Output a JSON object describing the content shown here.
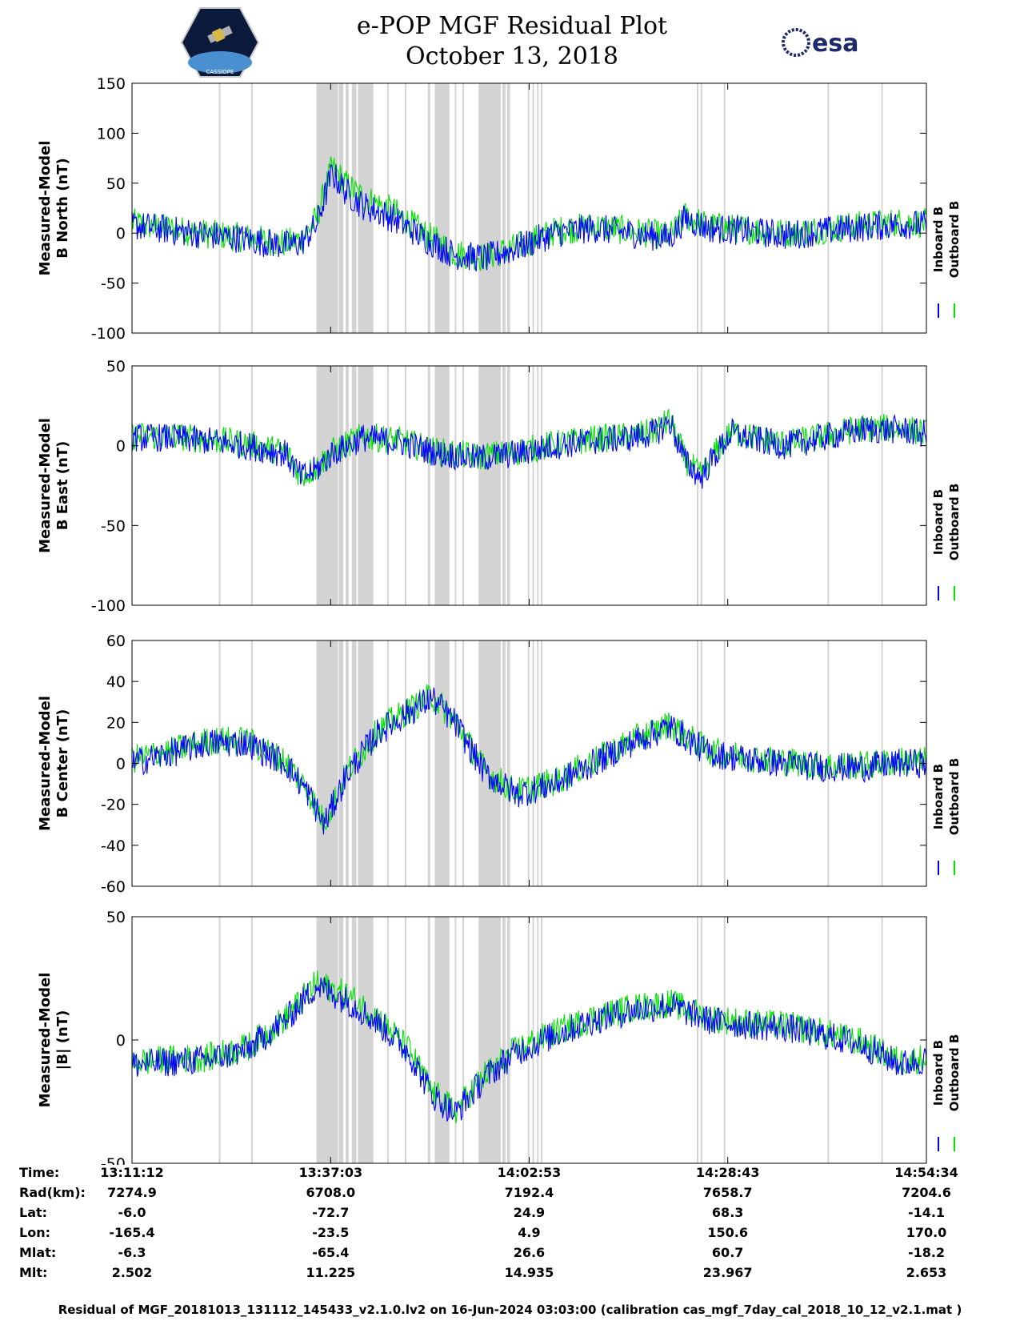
{
  "header": {
    "title_line1": "e-POP MGF Residual Plot",
    "title_line2": "October 13, 2018",
    "logo_left_text": "CASSIOPE",
    "logo_right_text": "esa"
  },
  "colors": {
    "inboard": "#0000ff",
    "outboard": "#00e000",
    "gap": "#d3d3d3"
  },
  "legend": {
    "inboard": "Inboard B",
    "outboard": "Outboard B"
  },
  "chart_data": [
    {
      "type": "line",
      "ylabel_line1": "Measured-Model",
      "ylabel_line2": "B North (nT)",
      "ylim": [
        -100,
        150
      ],
      "yticks": [
        150,
        100,
        50,
        0,
        -50,
        -100
      ],
      "x_minutes": [
        0,
        5,
        10,
        14,
        18,
        20,
        22,
        24,
        26,
        28,
        30,
        34,
        38,
        42,
        46,
        50,
        55,
        60,
        65,
        70,
        72,
        75,
        80,
        85,
        90,
        95,
        100,
        103.4
      ],
      "series": [
        {
          "name": "Inboard B",
          "values": [
            8,
            3,
            -2,
            -5,
            -10,
            -12,
            -10,
            8,
            60,
            40,
            28,
            15,
            -5,
            -22,
            -25,
            -15,
            0,
            5,
            0,
            -5,
            15,
            5,
            2,
            -2,
            2,
            6,
            9,
            8
          ]
        },
        {
          "name": "Outboard B",
          "values": [
            10,
            4,
            -1,
            -4,
            -8,
            -10,
            -6,
            14,
            66,
            48,
            36,
            22,
            0,
            -20,
            -24,
            -14,
            2,
            7,
            2,
            -3,
            17,
            7,
            4,
            0,
            4,
            8,
            11,
            10
          ]
        }
      ]
    },
    {
      "type": "line",
      "ylabel_line1": "Measured-Model",
      "ylabel_line2": "B East (nT)",
      "ylim": [
        -100,
        50
      ],
      "yticks": [
        50,
        0,
        -50,
        -100
      ],
      "x_minutes": [
        0,
        5,
        10,
        15,
        20,
        22,
        24,
        26,
        30,
        35,
        40,
        45,
        50,
        55,
        60,
        65,
        68,
        70,
        72,
        74,
        76,
        78,
        80,
        85,
        90,
        95,
        100,
        103.4
      ],
      "series": [
        {
          "name": "Inboard B",
          "values": [
            5,
            5,
            3,
            0,
            -5,
            -20,
            -15,
            -5,
            5,
            2,
            -5,
            -8,
            -5,
            0,
            3,
            5,
            8,
            15,
            -10,
            -20,
            -5,
            8,
            5,
            0,
            5,
            10,
            10,
            7
          ]
        },
        {
          "name": "Outboard B",
          "values": [
            6,
            6,
            4,
            1,
            -4,
            -19,
            -14,
            -4,
            6,
            3,
            -4,
            -7,
            -4,
            1,
            4,
            6,
            9,
            16,
            -9,
            -19,
            -4,
            9,
            6,
            1,
            6,
            11,
            11,
            8
          ]
        }
      ]
    },
    {
      "type": "line",
      "ylabel_line1": "Measured-Model",
      "ylabel_line2": "B Center (nT)",
      "ylim": [
        -60,
        60
      ],
      "yticks": [
        60,
        40,
        20,
        0,
        -20,
        -40,
        -60
      ],
      "x_minutes": [
        0,
        5,
        10,
        15,
        20,
        23,
        25,
        28,
        32,
        36,
        39,
        42,
        46,
        50,
        55,
        60,
        65,
        70,
        75,
        80,
        85,
        90,
        95,
        100,
        103.4
      ],
      "series": [
        {
          "name": "Inboard B",
          "values": [
            0,
            5,
            10,
            10,
            0,
            -15,
            -30,
            -5,
            15,
            25,
            32,
            20,
            -5,
            -15,
            -10,
            0,
            10,
            18,
            5,
            2,
            0,
            -2,
            -2,
            0,
            0
          ]
        },
        {
          "name": "Outboard B",
          "values": [
            2,
            6,
            11,
            11,
            1,
            -14,
            -29,
            -4,
            16,
            26,
            33,
            21,
            -4,
            -14,
            -9,
            1,
            11,
            19,
            6,
            3,
            1,
            -1,
            -1,
            1,
            1
          ]
        }
      ]
    },
    {
      "type": "line",
      "ylabel_line1": "Measured-Model",
      "ylabel_line2": "|B| (nT)",
      "ylim": [
        -50,
        50
      ],
      "yticks": [
        50,
        0,
        -50
      ],
      "x_minutes": [
        0,
        5,
        10,
        15,
        20,
        24,
        28,
        32,
        36,
        39,
        42,
        46,
        50,
        55,
        60,
        65,
        70,
        75,
        80,
        85,
        90,
        95,
        100,
        103.4
      ],
      "series": [
        {
          "name": "Inboard B",
          "values": [
            -10,
            -9,
            -8,
            -4,
            8,
            22,
            16,
            7,
            -5,
            -22,
            -30,
            -15,
            -5,
            2,
            8,
            12,
            14,
            8,
            6,
            5,
            2,
            -2,
            -10,
            -8
          ]
        },
        {
          "name": "Outboard B",
          "values": [
            -9,
            -8,
            -7,
            -3,
            9,
            23,
            18,
            9,
            -4,
            -21,
            -29,
            -14,
            -4,
            3,
            9,
            13,
            15,
            9,
            7,
            6,
            3,
            -1,
            -9,
            -7
          ]
        }
      ]
    }
  ],
  "gap_minutes": [
    [
      11.3,
      11.5
    ],
    [
      15.5,
      15.7
    ],
    [
      24,
      26.8
    ],
    [
      26.9,
      27.5
    ],
    [
      27.8,
      28.2
    ],
    [
      28.6,
      29.2
    ],
    [
      29.4,
      31.4
    ],
    [
      33.2,
      33.4
    ],
    [
      35.5,
      35.7
    ],
    [
      38.5,
      38.8
    ],
    [
      39.4,
      41.3
    ],
    [
      42,
      42.2
    ],
    [
      43,
      43.2
    ],
    [
      45.1,
      48
    ],
    [
      48.2,
      48.6
    ],
    [
      48.8,
      49.2
    ],
    [
      51.5,
      51.7
    ],
    [
      52.1,
      52.3
    ],
    [
      52.7,
      52.9
    ],
    [
      53.2,
      53.4
    ],
    [
      73.5,
      73.7
    ],
    [
      74,
      74.2
    ],
    [
      77,
      77.2
    ],
    [
      90.5,
      90.7
    ],
    [
      97.5,
      97.7
    ]
  ],
  "time_axis": {
    "tick_minutes": [
      0,
      25.85,
      51.68,
      77.52,
      103.37
    ],
    "rows": [
      {
        "label": "Time:",
        "values": [
          "13:11:12",
          "13:37:03",
          "14:02:53",
          "14:28:43",
          "14:54:34"
        ]
      },
      {
        "label": "Rad(km):",
        "values": [
          "7274.9",
          "6708.0",
          "7192.4",
          "7658.7",
          "7204.6"
        ]
      },
      {
        "label": "Lat:",
        "values": [
          "-6.0",
          "-72.7",
          "24.9",
          "68.3",
          "-14.1"
        ]
      },
      {
        "label": "Lon:",
        "values": [
          "-165.4",
          "-23.5",
          "4.9",
          "150.6",
          "170.0"
        ]
      },
      {
        "label": "Mlat:",
        "values": [
          "-6.3",
          "-65.4",
          "26.6",
          "60.7",
          "-18.2"
        ]
      },
      {
        "label": "Mlt:",
        "values": [
          "2.502",
          "11.225",
          "14.935",
          "23.967",
          "2.653"
        ]
      }
    ]
  },
  "footer": "Residual of MGF_20181013_131112_145433_v2.1.0.lv2 on 16-Jun-2024 03:03:00 (calibration cas_mgf_7day_cal_2018_10_12_v2.1.mat )"
}
